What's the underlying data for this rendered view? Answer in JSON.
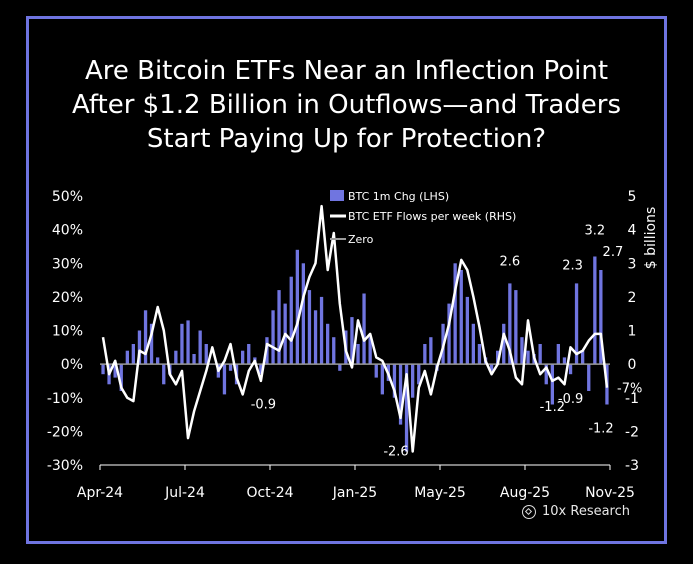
{
  "title_lines": [
    "Are Bitcoin ETFs Near an Inflection Point",
    "After $1.2 Billion in Outflows—and Traders",
    "Start Paying Up for Protection?"
  ],
  "brand": "10x Research",
  "colors": {
    "frame": "#6f74e0",
    "bar": "#7075e0",
    "line": "#ffffff",
    "text": "#ffffff",
    "zero": "#9a9a9a"
  },
  "chart_data": {
    "type": "bar",
    "x_tick_labels": [
      "Apr-24",
      "Jul-24",
      "Oct-24",
      "Jan-25",
      "May-25",
      "Aug-25",
      "Nov-25"
    ],
    "xlim_weeks": [
      0,
      84
    ],
    "left_axis": {
      "label": "",
      "ticks": [
        "50%",
        "40%",
        "30%",
        "20%",
        "10%",
        "0%",
        "-10%",
        "-20%",
        "-30%"
      ],
      "ylim": [
        -30,
        50
      ]
    },
    "right_axis": {
      "label": "$ billions",
      "ticks": [
        "5",
        "4",
        "3",
        "2",
        "1",
        "0",
        "-1",
        "-2",
        "-3"
      ],
      "ylim": [
        -3,
        5
      ]
    },
    "legend": [
      "BTC 1m Chg (LHS)",
      "BTC ETF Flows per week (RHS)",
      "Zero"
    ],
    "series": [
      {
        "name": "BTC 1m Chg (LHS)",
        "axis": "left",
        "values": [
          -3,
          -6,
          -4,
          -8,
          4,
          6,
          10,
          16,
          12,
          2,
          -6,
          -3,
          4,
          12,
          13,
          3,
          10,
          6,
          0,
          -4,
          -9,
          -2,
          -6,
          4,
          6,
          2,
          -3,
          8,
          16,
          22,
          18,
          26,
          34,
          30,
          22,
          16,
          20,
          12,
          8,
          -2,
          10,
          14,
          6,
          21,
          8,
          -4,
          -9,
          -5,
          -10,
          -18,
          -26,
          -10,
          -6,
          6,
          8,
          -2,
          12,
          18,
          30,
          28,
          20,
          12,
          6,
          2,
          -2,
          4,
          12,
          24,
          22,
          8,
          4,
          3,
          6,
          -6,
          -12,
          6,
          2,
          -3,
          24,
          4,
          -8,
          32,
          28,
          -12
        ]
      },
      {
        "name": "BTC ETF Flows per week (RHS)",
        "axis": "right",
        "values": [
          0.8,
          -0.3,
          0.1,
          -0.7,
          -1.0,
          -1.1,
          0.4,
          0.3,
          0.9,
          1.7,
          1.0,
          -0.3,
          -0.6,
          -0.2,
          -2.2,
          -1.4,
          -0.8,
          -0.2,
          0.5,
          -0.2,
          0.1,
          0.6,
          -0.4,
          -0.9,
          -0.2,
          0.1,
          -0.5,
          0.6,
          0.5,
          0.4,
          0.9,
          0.7,
          1.2,
          2.0,
          2.6,
          3.0,
          4.7,
          2.8,
          3.9,
          1.8,
          0.4,
          -0.1,
          1.3,
          0.7,
          0.9,
          0.2,
          0.1,
          -0.3,
          -0.8,
          -1.6,
          -0.3,
          -2.6,
          -0.7,
          -0.2,
          -0.9,
          -0.1,
          0.5,
          1.2,
          2.2,
          3.1,
          2.8,
          2.0,
          1.1,
          0.1,
          -0.3,
          0.0,
          0.9,
          0.4,
          -0.4,
          -0.6,
          1.3,
          0.2,
          -0.3,
          -0.1,
          -0.5,
          -0.4,
          -0.6,
          0.5,
          0.3,
          0.4,
          0.7,
          0.9,
          0.9,
          -0.7
        ]
      }
    ],
    "annotations": [
      "-0.9",
      "-2.6",
      "2.6",
      "2.3",
      "3.2",
      "2.7",
      "-1.2",
      "-0.9",
      "-1.2",
      "-7%"
    ]
  }
}
